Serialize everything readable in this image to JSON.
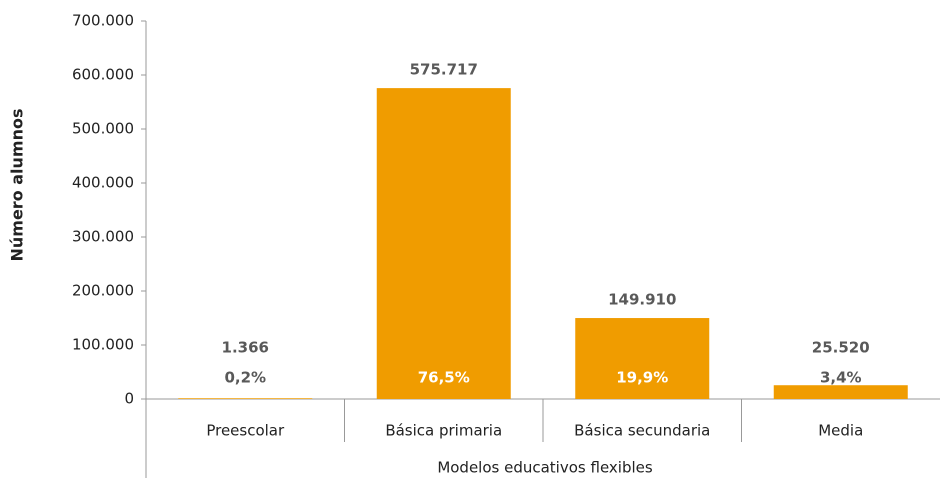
{
  "chart_data": {
    "type": "bar",
    "y_label": "Número alumnos",
    "x_label": "Modelos educativos flexibles",
    "categories": [
      "Preescolar",
      "Básica primaria",
      "Básica secundaria",
      "Media"
    ],
    "values": [
      1366,
      575717,
      149910,
      25520
    ],
    "value_labels": [
      "1.366",
      "575.717",
      "149.910",
      "25.520"
    ],
    "shares": [
      0.2,
      76.5,
      19.9,
      3.4
    ],
    "share_labels": [
      "0,2%",
      "76,5%",
      "19,9%",
      "3,4%"
    ],
    "color": "#f09c00",
    "ylim": [
      0,
      700000
    ],
    "yticks": [
      0,
      {
        "value": 100000,
        "label": "100.000"
      },
      {
        "value": 200000,
        "label": "200.000"
      },
      {
        "value": 300000,
        "label": "300.000"
      },
      {
        "value": 400000,
        "label": "400.000"
      },
      {
        "value": 500000,
        "label": "500.000"
      },
      {
        "value": 600000,
        "label": "600.000"
      },
      {
        "value": 700000,
        "label": "700.000"
      }
    ],
    "grid": false
  }
}
